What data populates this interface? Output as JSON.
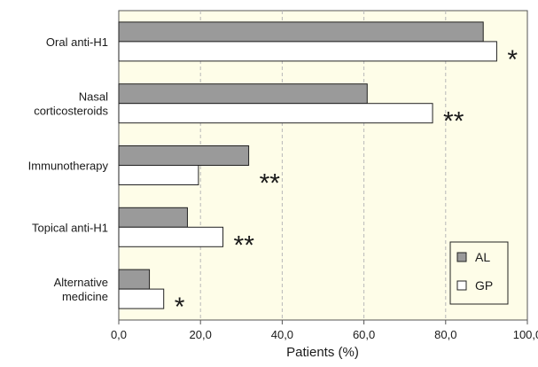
{
  "chart_data": {
    "type": "bar",
    "orientation": "horizontal",
    "categories": [
      {
        "lines": [
          "Oral anti-H1"
        ]
      },
      {
        "lines": [
          "Nasal",
          "corticosteroids"
        ]
      },
      {
        "lines": [
          "Immunotherapy"
        ]
      },
      {
        "lines": [
          "Topical anti-H1"
        ]
      },
      {
        "lines": [
          "Alternative",
          "medicine"
        ]
      }
    ],
    "series": [
      {
        "name": "AL",
        "values": [
          89.2,
          60.8,
          31.8,
          16.8,
          7.5
        ],
        "color": "#9a9a9a"
      },
      {
        "name": "GP",
        "values": [
          92.5,
          76.8,
          19.5,
          25.5,
          11.0
        ],
        "color": "#ffffff"
      }
    ],
    "significance": [
      "*",
      "**",
      "**",
      "**",
      "*"
    ],
    "xlabel": "Patients (%)",
    "xlim": [
      0,
      100
    ],
    "ticks": [
      {
        "value": 0,
        "label": "0,0"
      },
      {
        "value": 20,
        "label": "20,0"
      },
      {
        "value": 40,
        "label": "40,0"
      },
      {
        "value": 60,
        "label": "60,0"
      },
      {
        "value": 80,
        "label": "80,0"
      },
      {
        "value": 100,
        "label": "100,0"
      }
    ],
    "grid": "vertical dashed",
    "legend": "bottom-right",
    "plot_background": "#fefde8"
  }
}
